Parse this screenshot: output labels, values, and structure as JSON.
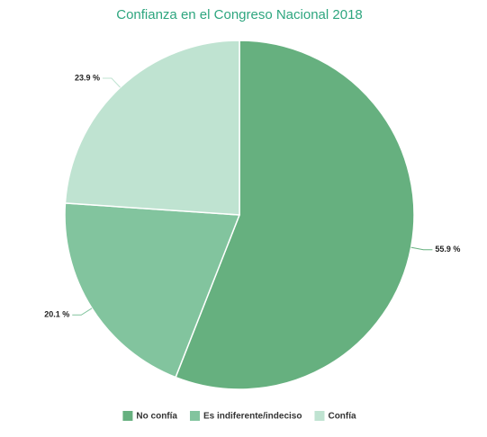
{
  "chart_data": {
    "type": "pie",
    "title": "Confianza en el Congreso Nacional 2018",
    "categories": [
      "No confía",
      "Es indiferente/indeciso",
      "Confía"
    ],
    "values": [
      55.9,
      20.1,
      23.9
    ],
    "value_labels": [
      "55.9 %",
      "20.1 %",
      "23.9 %"
    ],
    "colors": [
      "#66b07f",
      "#82c49e",
      "#bfe3d1"
    ]
  }
}
